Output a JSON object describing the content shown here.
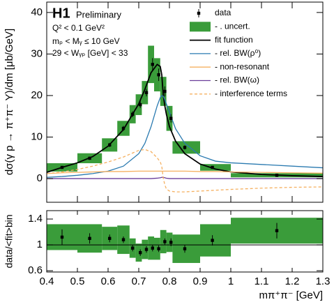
{
  "chart_data": [
    {
      "type": "line",
      "annotations": [
        "H1",
        "Preliminary",
        "Q² < 0.1 GeV²",
        "mₚ < Mᵧ ≤ 10 GeV",
        "29 < Wᵧₚ [GeV] < 33"
      ],
      "ylabel": "dσ(γ p → π⁺π⁻ Y)/dm [μb/GeV]",
      "xlim": [
        0.4,
        1.3
      ],
      "ylim": [
        -5.7,
        42.5
      ],
      "yticks": [
        0,
        10,
        20,
        30,
        40
      ],
      "bins": [
        0.4,
        0.5,
        0.58,
        0.63,
        0.67,
        0.69,
        0.71,
        0.73,
        0.75,
        0.77,
        0.79,
        0.81,
        0.9,
        1.0,
        1.3
      ],
      "data": {
        "name": "data",
        "color": "#000000",
        "x": [
          0.45,
          0.54,
          0.605,
          0.65,
          0.68,
          0.705,
          0.725,
          0.745,
          0.765,
          0.785,
          0.805,
          0.85,
          0.94,
          1.15
        ],
        "values": [
          2.7,
          4.9,
          8.1,
          12.1,
          15.5,
          17.8,
          20.7,
          27.5,
          25,
          21,
          14.5,
          7.5,
          2.7,
          0.8
        ],
        "errors": [
          0.3,
          0.4,
          0.5,
          0.6,
          0.7,
          0.8,
          0.9,
          1.5,
          1.5,
          1.2,
          1,
          0.5,
          0.3,
          0.2
        ],
        "uncert_name": "- . uncert.",
        "uncert_color": "#3a9c3a",
        "uncert": [
          1.0,
          1.2,
          1.6,
          1.8,
          2.2,
          2.5,
          2.8,
          4.5,
          4,
          3.5,
          3,
          1.5,
          0.8,
          0.5
        ]
      },
      "x": [
        0.4,
        0.45,
        0.5,
        0.55,
        0.6,
        0.65,
        0.7,
        0.72,
        0.74,
        0.76,
        0.77,
        0.775,
        0.78,
        0.785,
        0.79,
        0.8,
        0.82,
        0.85,
        0.9,
        0.95,
        1.0,
        1.1,
        1.2,
        1.3
      ],
      "series": [
        {
          "name": "fit function",
          "color": "#000000",
          "style": "solid",
          "values": [
            1.5,
            2.7,
            3.8,
            5.3,
            7.8,
            11.8,
            18,
            21.5,
            25.5,
            27.5,
            27,
            25,
            20,
            17.5,
            15.5,
            12.5,
            9,
            6,
            3.5,
            2.3,
            1.6,
            1.0,
            0.7,
            0.5
          ]
        },
        {
          "name": "- rel. BW(ρ⁰)",
          "color": "#2a7ab0",
          "style": "solid",
          "values": [
            0.3,
            0.5,
            0.8,
            1.2,
            1.8,
            3,
            6,
            8.5,
            12.5,
            17.5,
            19.5,
            20,
            19.8,
            19,
            18,
            16,
            12,
            8.5,
            5.5,
            4.2,
            3.8,
            3.4,
            3,
            2.6
          ]
        },
        {
          "name": "- non-resonant",
          "color": "#f5b060",
          "style": "solid",
          "values": [
            1.2,
            1.4,
            1.5,
            1.6,
            1.7,
            1.7,
            1.8,
            1.8,
            1.8,
            1.8,
            1.8,
            1.8,
            1.8,
            1.8,
            1.8,
            1.8,
            1.8,
            1.8,
            1.7,
            1.7,
            1.6,
            1.5,
            1.4,
            1.3
          ]
        },
        {
          "name": "- rel. BW(ω)",
          "color": "#6a3d9a",
          "style": "solid",
          "values": [
            0,
            0,
            0,
            0,
            0,
            0,
            0,
            0,
            0,
            0.1,
            0.2,
            0.3,
            0.3,
            0.2,
            0.1,
            0,
            0,
            0,
            0,
            0,
            0,
            0,
            0,
            0
          ]
        },
        {
          "name": "- interference terms",
          "color": "#f5b060",
          "style": "dash",
          "values": [
            1.2,
            1.6,
            2.2,
            3,
            4,
            5.2,
            6.8,
            7,
            6.5,
            5,
            4,
            3,
            0,
            -1.5,
            -2.5,
            -3,
            -3.2,
            -3.2,
            -3,
            -2.8,
            -2.6,
            -2.3,
            -2.1,
            -2
          ]
        }
      ]
    },
    {
      "type": "errorbar",
      "ylabel": "data/<fit>bin",
      "xlabel": "mπ⁺π⁻ [GeV]",
      "xlim": [
        0.4,
        1.3
      ],
      "xticks": [
        0.4,
        0.5,
        0.6,
        0.7,
        0.8,
        0.9,
        1,
        1.1,
        1.2,
        1.3
      ],
      "ylim": [
        0.58,
        1.53
      ],
      "yticks": [
        0.6,
        1,
        1.4
      ],
      "hline": 1,
      "bins": [
        0.4,
        0.5,
        0.58,
        0.63,
        0.67,
        0.69,
        0.71,
        0.73,
        0.75,
        0.77,
        0.79,
        0.81,
        0.9,
        1.0,
        1.3
      ],
      "x": [
        0.45,
        0.54,
        0.605,
        0.65,
        0.68,
        0.705,
        0.725,
        0.745,
        0.765,
        0.785,
        0.805,
        0.85,
        0.94,
        1.15
      ],
      "values": [
        1.12,
        1.1,
        1.1,
        1.08,
        0.95,
        0.88,
        0.93,
        0.95,
        0.94,
        1.05,
        1.04,
        0.94,
        1.07,
        1.22
      ],
      "errors": [
        0.12,
        0.08,
        0.06,
        0.05,
        0.05,
        0.05,
        0.05,
        0.05,
        0.05,
        0.05,
        0.06,
        0.06,
        0.08,
        0.12
      ],
      "uncert_color": "#3a9c3a",
      "uncert": [
        0.2,
        0.22,
        0.18,
        0.22,
        0.15,
        0.14,
        0.15,
        0.18,
        0.17,
        0.18,
        0.15,
        0.22,
        0.25,
        0.2
      ]
    }
  ]
}
